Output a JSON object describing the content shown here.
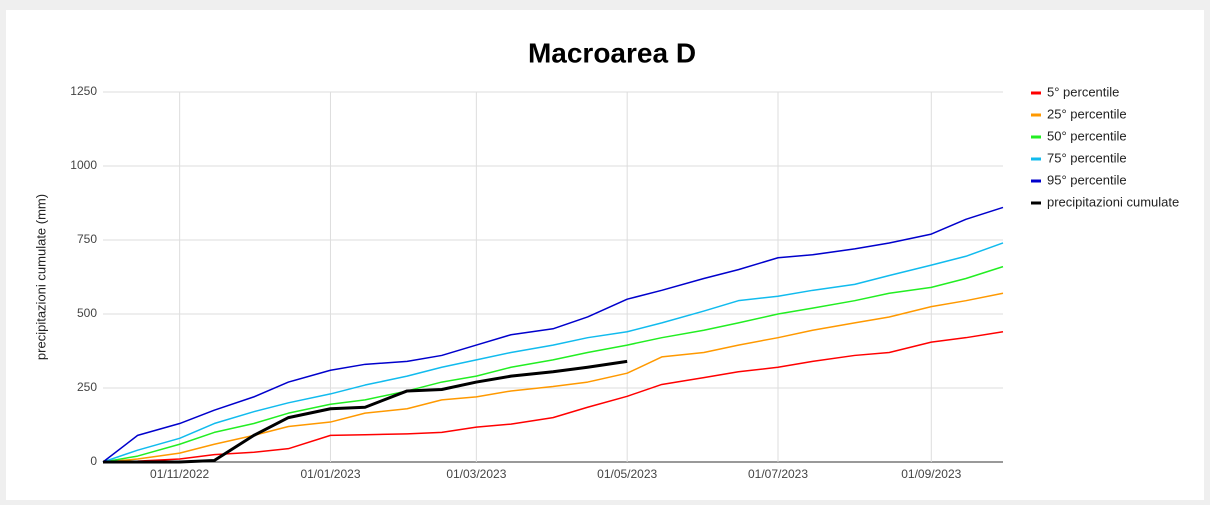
{
  "chart_data": {
    "type": "line",
    "title": "Macroarea D",
    "y_label": "precipitazioni cumulate (mm)",
    "x": [
      "01/10/2022",
      "15/10/2022",
      "01/11/2022",
      "15/11/2022",
      "01/12/2022",
      "15/12/2022",
      "01/01/2023",
      "15/01/2023",
      "01/02/2023",
      "15/02/2023",
      "01/03/2023",
      "15/03/2023",
      "01/04/2023",
      "15/04/2023",
      "01/05/2023",
      "15/05/2023",
      "01/06/2023",
      "15/06/2023",
      "01/07/2023",
      "15/07/2023",
      "01/08/2023",
      "15/08/2023",
      "01/09/2023",
      "15/09/2023",
      "30/09/2023"
    ],
    "xlim": [
      "01/10/2022",
      "30/09/2023"
    ],
    "xticks": [
      "01/11/2022",
      "01/01/2023",
      "01/03/2023",
      "01/05/2023",
      "01/07/2023",
      "01/09/2023"
    ],
    "ylim": [
      0,
      1250
    ],
    "yticks": [
      0,
      250,
      500,
      750,
      1000,
      1250
    ],
    "grid": true,
    "legend": "right",
    "series": [
      {
        "name": "5° percentile",
        "color": "#ff0000",
        "width": 1.5,
        "values": [
          0,
          3,
          10,
          25,
          33,
          45,
          90,
          92,
          95,
          100,
          118,
          128,
          150,
          185,
          222,
          262,
          285,
          305,
          320,
          340,
          360,
          370,
          405,
          420,
          440
        ]
      },
      {
        "name": "25° percentile",
        "color": "#ff9900",
        "width": 1.5,
        "values": [
          0,
          10,
          30,
          60,
          90,
          120,
          135,
          165,
          180,
          210,
          220,
          240,
          255,
          270,
          300,
          355,
          370,
          395,
          420,
          445,
          470,
          490,
          525,
          545,
          570
        ]
      },
      {
        "name": "50° percentile",
        "color": "#22ee22",
        "width": 1.5,
        "values": [
          0,
          20,
          60,
          100,
          130,
          165,
          195,
          210,
          240,
          270,
          290,
          320,
          345,
          370,
          395,
          420,
          445,
          470,
          500,
          520,
          545,
          570,
          590,
          620,
          660
        ]
      },
      {
        "name": "75° percentile",
        "color": "#11bbee",
        "width": 1.5,
        "values": [
          0,
          40,
          80,
          130,
          170,
          200,
          230,
          260,
          290,
          320,
          345,
          370,
          395,
          420,
          440,
          470,
          510,
          545,
          560,
          580,
          600,
          630,
          665,
          695,
          740
        ]
      },
      {
        "name": "95° percentile",
        "color": "#0000cc",
        "width": 1.5,
        "values": [
          0,
          90,
          130,
          175,
          220,
          270,
          310,
          330,
          340,
          360,
          395,
          430,
          450,
          490,
          550,
          580,
          620,
          650,
          690,
          700,
          720,
          740,
          770,
          820,
          860
        ]
      },
      {
        "name": "precipitazioni cumulate",
        "color": "#000000",
        "width": 3,
        "values": [
          0,
          0,
          0,
          5,
          90,
          150,
          180,
          185,
          240,
          245,
          270,
          290,
          305,
          320,
          340,
          null,
          null,
          null,
          null,
          null,
          null,
          null,
          null,
          null,
          null
        ]
      }
    ]
  }
}
